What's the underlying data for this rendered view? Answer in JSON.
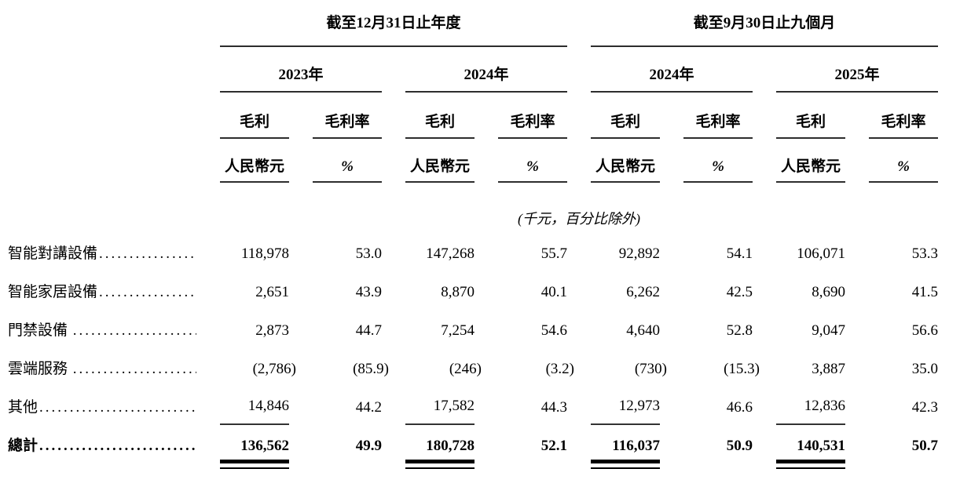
{
  "table": {
    "period_groups": [
      "截至12月31日止年度",
      "截至9月30日止九個月"
    ],
    "year_headers": [
      "2023年",
      "2024年",
      "2024年",
      "2025年"
    ],
    "measure_headers": [
      "毛利",
      "毛利率",
      "毛利",
      "毛利率",
      "毛利",
      "毛利率",
      "毛利",
      "毛利率"
    ],
    "unit_headers": [
      "人民幣元",
      "%",
      "人民幣元",
      "%",
      "人民幣元",
      "%",
      "人民幣元",
      "%"
    ],
    "unit_note": "(千元，百分比除外)",
    "rows": [
      {
        "label": "智能對講設備",
        "dots": "..........................",
        "values": [
          "118,978",
          "53.0",
          "147,268",
          "55.7",
          "92,892",
          "54.1",
          "106,071",
          "53.3"
        ]
      },
      {
        "label": "智能家居設備",
        "dots": "..........................",
        "values": [
          "2,651",
          "43.9",
          "8,870",
          "40.1",
          "6,262",
          "42.5",
          "8,690",
          "41.5"
        ]
      },
      {
        "label": "門禁設備 ",
        "dots": "..........................",
        "values": [
          "2,873",
          "44.7",
          "7,254",
          "54.6",
          "4,640",
          "52.8",
          "9,047",
          "56.6"
        ]
      },
      {
        "label": "雲端服務 ",
        "dots": "..........................",
        "values": [
          "(2,786)",
          "(85.9)",
          "(246)",
          "(3.2)",
          "(730)",
          "(15.3)",
          "3,887",
          "35.0"
        ]
      },
      {
        "label": "其他",
        "dots": "..........................",
        "underline": true,
        "values": [
          "14,846",
          "44.2",
          "17,582",
          "44.3",
          "12,973",
          "46.6",
          "12,836",
          "42.3"
        ]
      },
      {
        "label": "總計",
        "dots": "..........................",
        "total": true,
        "values": [
          "136,562",
          "49.9",
          "180,728",
          "52.1",
          "116,037",
          "50.9",
          "140,531",
          "50.7"
        ]
      }
    ]
  },
  "colors": {
    "text": "#000000",
    "rule": "#2d2d2d",
    "total_rule": "#000000"
  }
}
